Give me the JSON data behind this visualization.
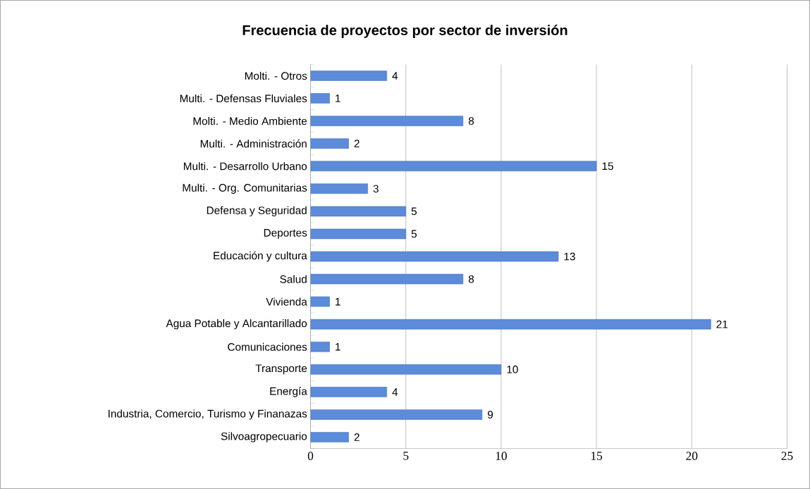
{
  "chart_data": {
    "type": "bar",
    "orientation": "horizontal",
    "title": "Frecuencia de proyectos por sector de inversión",
    "categories": [
      "Molti. - Otros",
      "Multi. - Defensas Fluviales",
      "Molti. - Medio Ambiente",
      "Multi. - Administración",
      "Multi. - Desarrollo Urbano",
      "Multi. - Org. Comunitarias",
      "Defensa y Seguridad",
      "Deportes",
      "Educación y cultura",
      "Salud",
      "Vivienda",
      "Agua Potable y Alcantarillado",
      "Comunicaciones",
      "Transporte",
      "Energía",
      "Industria, Comercio, Turismo y Finanazas",
      "Silvoagropecuario"
    ],
    "values": [
      4,
      1,
      8,
      2,
      15,
      3,
      5,
      5,
      13,
      8,
      1,
      21,
      1,
      10,
      4,
      9,
      2
    ],
    "color": "#5b8bd9",
    "xlim": [
      0,
      25
    ],
    "xticks": [
      0,
      5,
      10,
      15,
      20,
      25
    ],
    "grid": "x",
    "data_labels": true
  }
}
